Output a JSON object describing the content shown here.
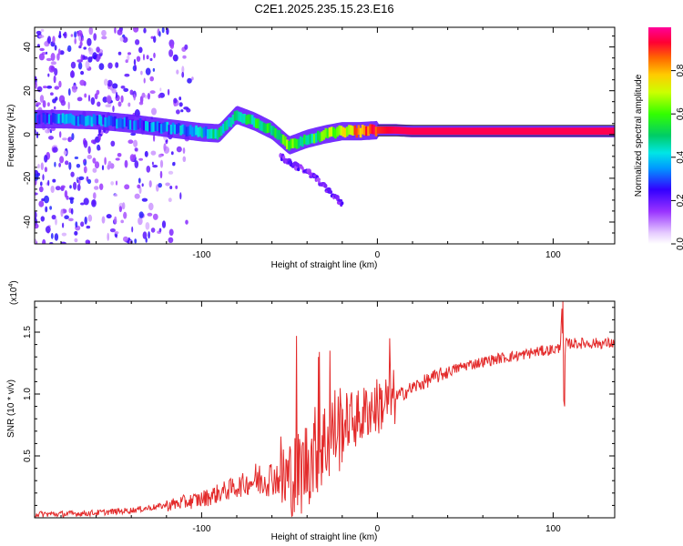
{
  "title": "C2E1.2025.235.15.23.E16",
  "colors": {
    "background": "#ffffff",
    "axis": "#000000",
    "snr_line": "#e32b2b",
    "spec_low": "#cc99ff",
    "spec_mid": "#1fd4d4",
    "spec_high": "#ff1f4f"
  },
  "chart_data": [
    {
      "type": "heatmap",
      "title": "C2E1.2025.235.15.23.E16",
      "xlabel": "Height of straight line (km)",
      "ylabel": "Frequency (Hz)",
      "xlim": [
        -195,
        135
      ],
      "ylim": [
        -50,
        49
      ],
      "xticks": [
        -100,
        0,
        100
      ],
      "xtick_labels": [
        "-100",
        "0",
        "100"
      ],
      "yticks": [
        -40,
        -20,
        0,
        20,
        40
      ],
      "ytick_labels": [
        "-40",
        "-20",
        "0",
        "20",
        "40"
      ],
      "colorbar": {
        "label": "Normalized spectral amplitude",
        "range": [
          0,
          1
        ],
        "ticks": [
          0.0,
          0.2,
          0.4,
          0.6,
          0.8
        ],
        "tick_labels": [
          "0.0",
          "0.2",
          "0.4",
          "0.6",
          "0.8"
        ]
      },
      "ridge": {
        "x": [
          -195,
          -180,
          -160,
          -140,
          -120,
          -100,
          -90,
          -80,
          -70,
          -60,
          -50,
          -40,
          -30,
          -20,
          -10,
          0,
          10,
          20,
          40,
          60,
          80,
          90,
          100,
          110,
          120,
          135
        ],
        "y": [
          7,
          7,
          6.5,
          5,
          3,
          1,
          0.5,
          9,
          6,
          2,
          -5,
          -2,
          0,
          1.5,
          1.5,
          2,
          2,
          1.5,
          1.5,
          1.5,
          1.5,
          1.5,
          1.5,
          1.5,
          1.5,
          1.5
        ],
        "amplitude": [
          0.25,
          0.35,
          0.3,
          0.3,
          0.32,
          0.4,
          0.45,
          0.45,
          0.5,
          0.55,
          0.6,
          0.5,
          0.6,
          0.7,
          0.85,
          0.9,
          0.95,
          0.95,
          0.95,
          0.95,
          0.95,
          0.95,
          0.95,
          0.95,
          0.95,
          0.95
        ]
      },
      "branch": {
        "x": [
          -55,
          -50,
          -45,
          -40,
          -35,
          -30,
          -25,
          -20
        ],
        "y": [
          -10,
          -13,
          -15,
          -17,
          -20,
          -24,
          -28,
          -32
        ]
      },
      "noise_region_km": [
        -195,
        -105
      ]
    },
    {
      "type": "line",
      "xlabel": "Height of straight line (km)",
      "ylabel": "SNR (10 * v/v)",
      "scale_label": "(x10",
      "scale_exponent": "4",
      "xlim": [
        -195,
        135
      ],
      "ylim": [
        0,
        17500
      ],
      "xticks": [
        -100,
        0,
        100
      ],
      "xtick_labels": [
        "-100",
        "0",
        "100"
      ],
      "yticks": [
        5000,
        10000,
        15000
      ],
      "ytick_labels": [
        "0.5",
        "1.0",
        "1.5"
      ],
      "series": [
        {
          "name": "SNR",
          "x": [
            -195,
            -180,
            -160,
            -140,
            -120,
            -100,
            -90,
            -80,
            -70,
            -60,
            -55,
            -50,
            -45,
            -40,
            -35,
            -30,
            -25,
            -20,
            -15,
            -10,
            -5,
            0,
            10,
            20,
            30,
            40,
            50,
            60,
            70,
            80,
            90,
            100,
            104,
            105,
            106,
            107,
            108,
            110,
            120,
            135
          ],
          "values": [
            300,
            300,
            400,
            600,
            1000,
            1500,
            2000,
            2500,
            3000,
            3300,
            3200,
            3000,
            3500,
            4500,
            5500,
            6000,
            7000,
            7500,
            8000,
            8000,
            8800,
            9000,
            9700,
            10500,
            11200,
            11800,
            12300,
            12600,
            12900,
            13100,
            13400,
            13600,
            13700,
            17500,
            9000,
            14200,
            14000,
            14100,
            14100,
            14100
          ]
        }
      ],
      "spikes": [
        {
          "x": -46,
          "value": 14700
        },
        {
          "x": -33,
          "value": 13400
        },
        {
          "x": -33.5,
          "value": 13000
        },
        {
          "x": -27,
          "value": 13500
        },
        {
          "x": 7,
          "value": 14500
        },
        {
          "x": 105.5,
          "value": 17500
        },
        {
          "x": 106.5,
          "value": 9000
        }
      ]
    }
  ]
}
